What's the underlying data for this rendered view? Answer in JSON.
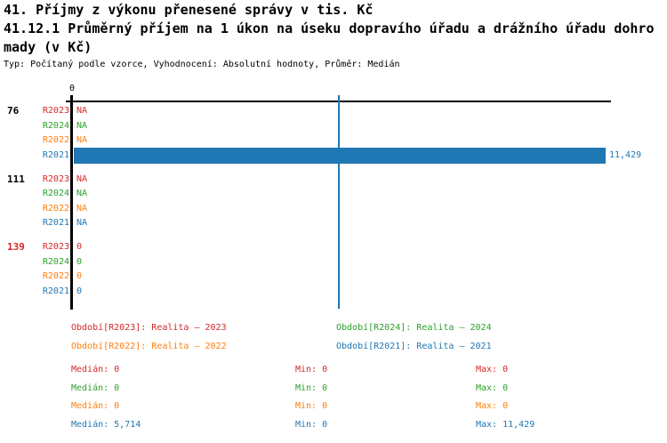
{
  "colors": {
    "red": "#d62728",
    "green": "#2ca02c",
    "orange": "#ff7f0e",
    "blue": "#1f77b4",
    "axis": "#000000",
    "black": "#000000"
  },
  "header": {
    "title_line1": "41. Příjmy z výkonu přenesené správy v tis. Kč",
    "title_line2": "41.12.1 Průměrný příjem na 1 úkon na úseku dopravího úřadu a drážního úřadu dohro",
    "title_line3": "mady (v Kč)",
    "subtitle": "Typ: Počítaný podle vzorce, Vyhodnocení: Absolutní hodnoty, Průměr: Medián"
  },
  "chart_data": {
    "type": "bar",
    "orientation": "horizontal",
    "xlim": [
      0,
      11429
    ],
    "axis_tick_labels": [
      "0"
    ],
    "median_line_value": 5714,
    "series": [
      "R2023",
      "R2024",
      "R2022",
      "R2021"
    ],
    "groups": [
      {
        "label": "76",
        "label_color": "black",
        "rows": [
          {
            "series": "R2023",
            "color": "red",
            "value": null,
            "display": "NA"
          },
          {
            "series": "R2024",
            "color": "green",
            "value": null,
            "display": "NA"
          },
          {
            "series": "R2022",
            "color": "orange",
            "value": null,
            "display": "NA"
          },
          {
            "series": "R2021",
            "color": "blue",
            "value": 11429,
            "display": "11,429"
          }
        ]
      },
      {
        "label": "111",
        "label_color": "black",
        "rows": [
          {
            "series": "R2023",
            "color": "red",
            "value": null,
            "display": "NA"
          },
          {
            "series": "R2024",
            "color": "green",
            "value": null,
            "display": "NA"
          },
          {
            "series": "R2022",
            "color": "orange",
            "value": null,
            "display": "NA"
          },
          {
            "series": "R2021",
            "color": "blue",
            "value": null,
            "display": "NA"
          }
        ]
      },
      {
        "label": "139",
        "label_color": "red",
        "rows": [
          {
            "series": "R2023",
            "color": "red",
            "value": 0,
            "display": "0"
          },
          {
            "series": "R2024",
            "color": "green",
            "value": 0,
            "display": "0"
          },
          {
            "series": "R2022",
            "color": "orange",
            "value": 0,
            "display": "0"
          },
          {
            "series": "R2021",
            "color": "blue",
            "value": 0,
            "display": "0"
          }
        ]
      }
    ]
  },
  "legend": [
    {
      "text": "Období[R2023]: Realita – 2023",
      "color": "red"
    },
    {
      "text": "Období[R2024]: Realita – 2024",
      "color": "green"
    },
    {
      "text": "Období[R2022]: Realita – 2022",
      "color": "orange"
    },
    {
      "text": "Období[R2021]: Realita – 2021",
      "color": "blue"
    }
  ],
  "stats": {
    "median_label": "Medián:",
    "min_label": "Min:",
    "max_label": "Max:",
    "rows": [
      {
        "color": "red",
        "median": "0",
        "min": "0",
        "max": "0"
      },
      {
        "color": "green",
        "median": "0",
        "min": "0",
        "max": "0"
      },
      {
        "color": "orange",
        "median": "0",
        "min": "0",
        "max": "0"
      },
      {
        "color": "blue",
        "median": "5,714",
        "min": "0",
        "max": "11,429"
      }
    ]
  }
}
